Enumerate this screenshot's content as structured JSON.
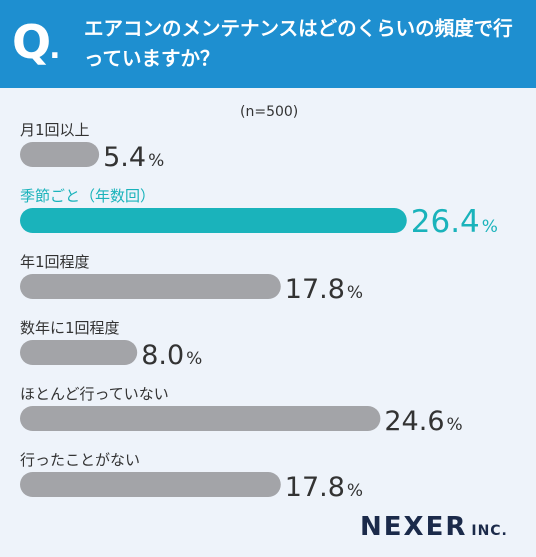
{
  "header": {
    "q_letter": "Q",
    "q_dot": ".",
    "question": "エアコンのメンテナンスはどのくらいの頻度で行っていますか？"
  },
  "note": "(n=500)",
  "colors": {
    "header": "#1e8fd0",
    "highlight": "#1ab3bb",
    "bar": "#a3a4a8",
    "text": "#333333"
  },
  "chart_data": {
    "type": "bar",
    "orientation": "horizontal",
    "unit": "%",
    "categories": [
      "月1回以上",
      "季節ごと（年数回）",
      "年1回程度",
      "数年に1回程度",
      "ほとんど行っていない",
      "行ったことがない"
    ],
    "values": [
      5.4,
      26.4,
      17.8,
      8.0,
      24.6,
      17.8
    ],
    "value_labels": [
      "5.4",
      "26.4",
      "17.8",
      "8.0",
      "24.6",
      "17.8"
    ],
    "highlight_index": 1
  },
  "logo": {
    "main": "NEXER",
    "sub": "INC."
  }
}
